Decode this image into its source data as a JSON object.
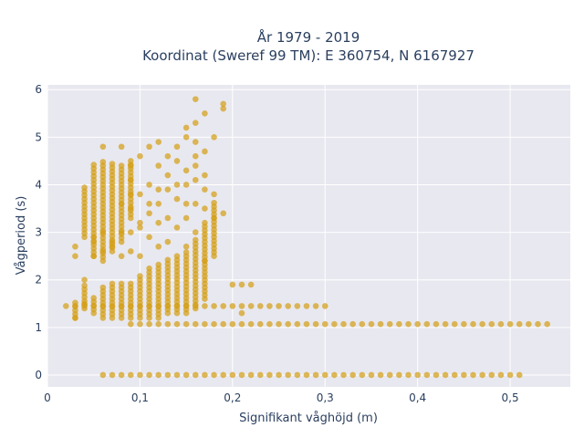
{
  "chart_data": {
    "type": "scatter",
    "title": "År 1979 - 2019",
    "subtitle": "Koordinat (Sweref 99 TM): E 360754, N 6167927",
    "xlabel": "Signifikant våghöjd (m)",
    "ylabel": "Vågperiod (s)",
    "xlim": [
      0,
      0.565
    ],
    "ylim": [
      -0.25,
      6.1
    ],
    "x_ticks": [
      0,
      0.1,
      0.2,
      0.3,
      0.4,
      0.5
    ],
    "x_tick_labels": [
      "0",
      "0,1",
      "0,2",
      "0,3",
      "0,4",
      "0,5"
    ],
    "y_ticks": [
      0,
      1,
      2,
      3,
      4,
      5,
      6
    ],
    "y_tick_labels": [
      "0",
      "1",
      "2",
      "3",
      "4",
      "5",
      "6"
    ],
    "grid": true,
    "background_color": "#e8e8f0",
    "marker_color": "#d4a017",
    "x_step": 0.01,
    "row_bands": [
      {
        "y": 0.0,
        "x_start": 0.06,
        "x_end": 0.51
      },
      {
        "y": 1.07,
        "x_start": 0.09,
        "x_end": 0.54
      },
      {
        "y": 1.45,
        "x_start": 0.02,
        "x_end": 0.3
      }
    ],
    "vertical_bands": [
      {
        "x": 0.03,
        "y_min": 1.2,
        "y_max": 1.5
      },
      {
        "x": 0.04,
        "y_min": 1.4,
        "y_max": 1.9
      },
      {
        "x": 0.05,
        "y_min": 1.3,
        "y_max": 1.6
      },
      {
        "x": 0.06,
        "y_min": 1.2,
        "y_max": 1.8
      },
      {
        "x": 0.07,
        "y_min": 1.2,
        "y_max": 1.9
      },
      {
        "x": 0.08,
        "y_min": 1.2,
        "y_max": 1.9
      },
      {
        "x": 0.09,
        "y_min": 1.2,
        "y_max": 1.9
      },
      {
        "x": 0.1,
        "y_min": 1.2,
        "y_max": 2.1
      },
      {
        "x": 0.11,
        "y_min": 1.2,
        "y_max": 2.2
      },
      {
        "x": 0.12,
        "y_min": 1.2,
        "y_max": 2.3
      },
      {
        "x": 0.13,
        "y_min": 1.3,
        "y_max": 2.4
      },
      {
        "x": 0.14,
        "y_min": 1.3,
        "y_max": 2.5
      },
      {
        "x": 0.15,
        "y_min": 1.3,
        "y_max": 2.6
      },
      {
        "x": 0.16,
        "y_min": 1.4,
        "y_max": 2.8
      },
      {
        "x": 0.17,
        "y_min": 1.6,
        "y_max": 3.2
      },
      {
        "x": 0.18,
        "y_min": 2.5,
        "y_max": 3.6
      },
      {
        "x": 0.04,
        "y_min": 2.9,
        "y_max": 3.9
      },
      {
        "x": 0.05,
        "y_min": 2.5,
        "y_max": 4.4
      },
      {
        "x": 0.06,
        "y_min": 2.4,
        "y_max": 4.5
      },
      {
        "x": 0.07,
        "y_min": 2.6,
        "y_max": 4.4
      },
      {
        "x": 0.08,
        "y_min": 2.8,
        "y_max": 4.4
      },
      {
        "x": 0.09,
        "y_min": 3.3,
        "y_max": 4.5
      }
    ],
    "scattered_points": [
      [
        0.06,
        4.8
      ],
      [
        0.08,
        4.8
      ],
      [
        0.09,
        4.4
      ],
      [
        0.1,
        4.6
      ],
      [
        0.11,
        4.8
      ],
      [
        0.12,
        4.9
      ],
      [
        0.13,
        4.6
      ],
      [
        0.14,
        4.8
      ],
      [
        0.15,
        5.0
      ],
      [
        0.15,
        5.2
      ],
      [
        0.16,
        5.8
      ],
      [
        0.16,
        5.3
      ],
      [
        0.17,
        5.5
      ],
      [
        0.18,
        5.0
      ],
      [
        0.19,
        5.7
      ],
      [
        0.19,
        5.6
      ],
      [
        0.16,
        4.9
      ],
      [
        0.17,
        4.7
      ],
      [
        0.13,
        4.2
      ],
      [
        0.14,
        4.5
      ],
      [
        0.15,
        4.3
      ],
      [
        0.16,
        4.6
      ],
      [
        0.12,
        4.4
      ],
      [
        0.11,
        3.6
      ],
      [
        0.1,
        3.8
      ],
      [
        0.12,
        3.6
      ],
      [
        0.13,
        3.9
      ],
      [
        0.14,
        3.7
      ],
      [
        0.15,
        3.3
      ],
      [
        0.16,
        3.6
      ],
      [
        0.17,
        3.5
      ],
      [
        0.11,
        3.4
      ],
      [
        0.1,
        3.2
      ],
      [
        0.09,
        3.5
      ],
      [
        0.14,
        3.1
      ],
      [
        0.13,
        2.8
      ],
      [
        0.12,
        2.7
      ],
      [
        0.1,
        2.5
      ],
      [
        0.09,
        2.6
      ],
      [
        0.09,
        3.0
      ],
      [
        0.08,
        2.5
      ],
      [
        0.07,
        2.8
      ],
      [
        0.05,
        2.9
      ],
      [
        0.06,
        3.0
      ],
      [
        0.03,
        2.7
      ],
      [
        0.03,
        2.5
      ],
      [
        0.04,
        2.0
      ],
      [
        0.05,
        2.8
      ],
      [
        0.08,
        3.6
      ],
      [
        0.09,
        4.1
      ],
      [
        0.09,
        3.8
      ],
      [
        0.17,
        4.2
      ],
      [
        0.16,
        4.1
      ],
      [
        0.18,
        3.3
      ],
      [
        0.19,
        3.4
      ],
      [
        0.2,
        1.9
      ],
      [
        0.21,
        1.9
      ],
      [
        0.22,
        1.9
      ],
      [
        0.21,
        1.3
      ],
      [
        0.17,
        2.4
      ],
      [
        0.15,
        2.7
      ],
      [
        0.11,
        2.9
      ],
      [
        0.12,
        3.2
      ],
      [
        0.16,
        3.0
      ],
      [
        0.13,
        3.3
      ],
      [
        0.14,
        4.0
      ],
      [
        0.16,
        4.4
      ],
      [
        0.15,
        4.0
      ],
      [
        0.17,
        3.9
      ],
      [
        0.18,
        3.8
      ],
      [
        0.15,
        3.6
      ],
      [
        0.11,
        4.0
      ],
      [
        0.12,
        3.9
      ],
      [
        0.1,
        3.1
      ],
      [
        0.08,
        3.0
      ],
      [
        0.07,
        2.7
      ],
      [
        0.06,
        2.6
      ],
      [
        0.05,
        2.5
      ],
      [
        0.03,
        1.2
      ],
      [
        0.04,
        1.5
      ]
    ]
  }
}
